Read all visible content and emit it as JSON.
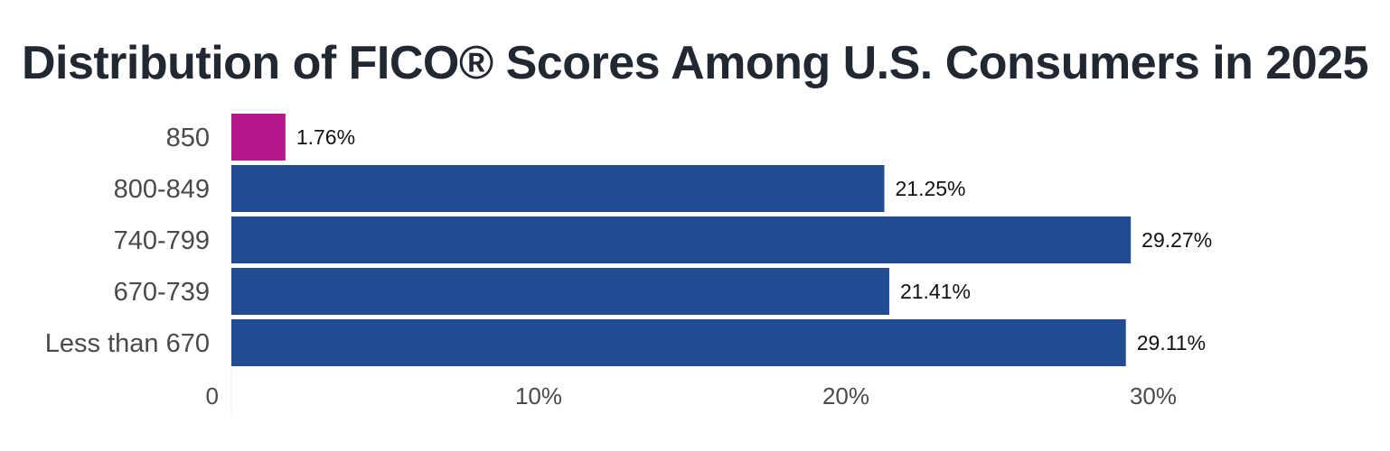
{
  "chart_data": {
    "type": "bar",
    "orientation": "horizontal",
    "title": "Distribution of FICO® Scores Among U.S. Consumers in 2025",
    "categories": [
      "850",
      "800-849",
      "740-799",
      "670-739",
      "Less than 670"
    ],
    "values": [
      1.76,
      21.25,
      29.27,
      21.41,
      29.11
    ],
    "value_labels": [
      "1.76%",
      "21.25%",
      "29.27%",
      "21.41%",
      "29.11%"
    ],
    "bar_colors": [
      "#b5178b",
      "#214c91",
      "#214c91",
      "#214c91",
      "#214c91"
    ],
    "xticks": [
      0,
      10,
      20,
      30
    ],
    "xtick_labels": [
      "0",
      "10%",
      "20%",
      "30%"
    ],
    "xlim": [
      0,
      33
    ],
    "xlabel": "",
    "ylabel": "",
    "grid": false,
    "legend": "none"
  }
}
